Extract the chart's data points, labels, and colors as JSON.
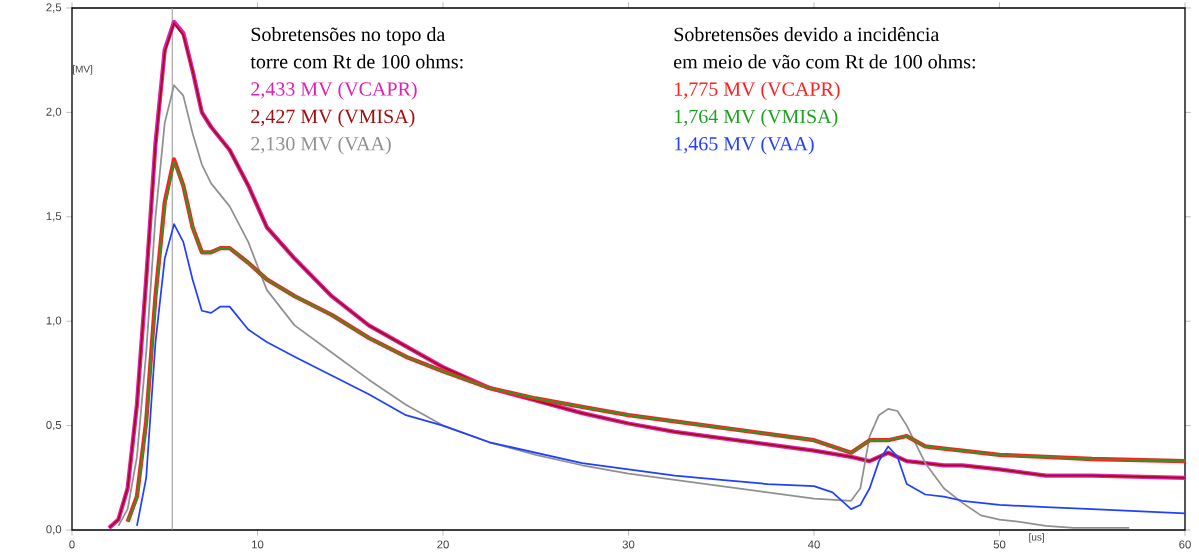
{
  "chart_data": {
    "type": "line",
    "xlabel": "[us]",
    "ylabel": "[MV]",
    "annotations": [
      "Sobretensões no topo da",
      "torre com Rt de 100 ohms:",
      "Sobretensões devido a incidência",
      "em meio de vão com Rt de 100 ohms:"
    ],
    "xlim": [
      0,
      60
    ],
    "ylim": [
      0,
      2.5
    ],
    "xticks": [
      0,
      10,
      20,
      30,
      40,
      50,
      60
    ],
    "yticks": [
      {
        "value": 0,
        "label": "0,0"
      },
      {
        "value": 0.5,
        "label": "0,5"
      },
      {
        "value": 1,
        "label": "1,0"
      },
      {
        "value": 1.5,
        "label": "1,5"
      },
      {
        "value": 2,
        "label": "2,0"
      },
      {
        "value": 2.5,
        "label": "2,5"
      }
    ],
    "ref_lines": [
      {
        "axis": "x",
        "value": 5.4,
        "color": "#909090"
      }
    ],
    "series": [
      {
        "name": "2,433 MV (VCAPR)",
        "color": "#e020b0",
        "x": [
          2,
          2.5,
          3,
          3.5,
          4,
          4.5,
          5,
          5.5,
          6,
          6.5,
          7,
          7.5,
          8.5,
          9.5,
          10.5,
          12,
          14,
          16,
          18,
          20,
          22.5,
          25,
          27.5,
          30,
          32.5,
          35,
          37.5,
          40,
          42,
          43,
          44,
          45,
          46,
          47,
          48,
          50,
          52.5,
          55,
          60
        ],
        "values": [
          0.01,
          0.05,
          0.2,
          0.6,
          1.2,
          1.85,
          2.3,
          2.433,
          2.38,
          2.2,
          2.0,
          1.93,
          1.82,
          1.65,
          1.45,
          1.3,
          1.12,
          0.98,
          0.88,
          0.78,
          0.68,
          0.62,
          0.56,
          0.51,
          0.47,
          0.44,
          0.41,
          0.38,
          0.35,
          0.33,
          0.37,
          0.33,
          0.32,
          0.31,
          0.31,
          0.29,
          0.26,
          0.26,
          0.25
        ]
      },
      {
        "name": "2,427 MV (VMISA)",
        "color": "#a01010",
        "x": [
          2,
          2.5,
          3,
          3.5,
          4,
          4.5,
          5,
          5.5,
          6,
          6.5,
          7,
          7.5,
          8.5,
          9.5,
          10.5,
          12,
          14,
          16,
          18,
          20,
          22.5,
          25,
          27.5,
          30,
          32.5,
          35,
          37.5,
          40,
          42,
          43,
          44,
          45,
          46,
          47,
          48,
          50,
          52.5,
          55,
          60
        ],
        "values": [
          0.01,
          0.05,
          0.2,
          0.6,
          1.2,
          1.84,
          2.29,
          2.427,
          2.37,
          2.2,
          2.0,
          1.93,
          1.82,
          1.65,
          1.45,
          1.3,
          1.12,
          0.98,
          0.88,
          0.78,
          0.68,
          0.62,
          0.56,
          0.51,
          0.47,
          0.44,
          0.41,
          0.38,
          0.35,
          0.33,
          0.37,
          0.33,
          0.32,
          0.31,
          0.31,
          0.29,
          0.26,
          0.26,
          0.25
        ]
      },
      {
        "name": "2,130 MV (VAA)",
        "color": "#909090",
        "x": [
          2.5,
          3,
          3.5,
          4,
          4.5,
          5,
          5.5,
          6,
          6.5,
          7,
          7.5,
          8.5,
          9.5,
          10.5,
          12,
          14,
          16,
          18,
          20,
          22.5,
          25,
          27.5,
          30,
          32.5,
          35,
          37.5,
          40,
          42,
          42.5,
          43,
          43.5,
          44,
          44.5,
          45,
          46,
          47,
          48,
          49,
          50,
          51,
          52.5,
          54,
          57
        ],
        "values": [
          0.02,
          0.1,
          0.35,
          0.85,
          1.5,
          1.95,
          2.13,
          2.08,
          1.9,
          1.75,
          1.66,
          1.55,
          1.38,
          1.15,
          0.98,
          0.85,
          0.72,
          0.6,
          0.5,
          0.42,
          0.36,
          0.31,
          0.27,
          0.24,
          0.21,
          0.18,
          0.15,
          0.14,
          0.2,
          0.45,
          0.55,
          0.58,
          0.57,
          0.5,
          0.32,
          0.2,
          0.13,
          0.07,
          0.05,
          0.04,
          0.02,
          0.01,
          0.01
        ]
      },
      {
        "name": "1,775 MV (VCAPR)",
        "color": "#ff2020",
        "x": [
          3,
          3.5,
          4,
          4.5,
          5,
          5.5,
          6,
          6.5,
          7,
          7.5,
          8,
          8.5,
          9.5,
          10.5,
          12,
          14,
          16,
          18,
          20,
          22.5,
          25,
          27.5,
          30,
          32.5,
          35,
          37.5,
          40,
          42,
          43,
          44,
          45,
          46,
          47,
          48,
          50,
          52.5,
          55,
          60
        ],
        "values": [
          0.04,
          0.16,
          0.52,
          1.12,
          1.57,
          1.775,
          1.65,
          1.45,
          1.33,
          1.33,
          1.35,
          1.35,
          1.28,
          1.2,
          1.12,
          1.03,
          0.92,
          0.83,
          0.76,
          0.68,
          0.63,
          0.59,
          0.55,
          0.52,
          0.49,
          0.46,
          0.43,
          0.37,
          0.43,
          0.43,
          0.45,
          0.4,
          0.39,
          0.38,
          0.36,
          0.35,
          0.34,
          0.33
        ]
      },
      {
        "name": "1,764 MV (VMISA)",
        "color": "#20a020",
        "x": [
          3,
          3.5,
          4,
          4.5,
          5,
          5.5,
          6,
          6.5,
          7,
          7.5,
          8,
          8.5,
          9.5,
          10.5,
          12,
          14,
          16,
          18,
          20,
          22.5,
          25,
          27.5,
          30,
          32.5,
          35,
          37.5,
          40,
          42,
          43,
          44,
          45,
          46,
          47,
          48,
          50,
          52.5,
          55,
          60
        ],
        "values": [
          0.04,
          0.15,
          0.5,
          1.1,
          1.55,
          1.764,
          1.65,
          1.45,
          1.33,
          1.33,
          1.35,
          1.35,
          1.28,
          1.2,
          1.12,
          1.03,
          0.92,
          0.83,
          0.76,
          0.68,
          0.63,
          0.59,
          0.55,
          0.52,
          0.49,
          0.46,
          0.43,
          0.37,
          0.43,
          0.43,
          0.45,
          0.4,
          0.39,
          0.38,
          0.36,
          0.35,
          0.34,
          0.33
        ]
      },
      {
        "name": "1,465 MV (VAA)",
        "color": "#2040ff",
        "x": [
          3.5,
          4,
          4.5,
          5,
          5.5,
          6,
          6.5,
          7,
          7.5,
          8,
          8.5,
          9.5,
          10.5,
          12,
          14,
          16,
          18,
          20,
          22.5,
          25,
          27.5,
          30,
          32.5,
          35,
          37.5,
          40,
          41,
          42,
          42.5,
          43,
          43.5,
          44,
          44.5,
          45,
          46,
          47,
          48,
          50,
          52.5,
          55,
          60
        ],
        "values": [
          0.02,
          0.25,
          0.9,
          1.3,
          1.465,
          1.38,
          1.2,
          1.05,
          1.04,
          1.07,
          1.07,
          0.96,
          0.9,
          0.83,
          0.74,
          0.65,
          0.55,
          0.5,
          0.42,
          0.37,
          0.32,
          0.29,
          0.26,
          0.24,
          0.22,
          0.21,
          0.18,
          0.1,
          0.12,
          0.2,
          0.33,
          0.4,
          0.35,
          0.22,
          0.17,
          0.16,
          0.14,
          0.12,
          0.11,
          0.1,
          0.08
        ]
      }
    ]
  }
}
